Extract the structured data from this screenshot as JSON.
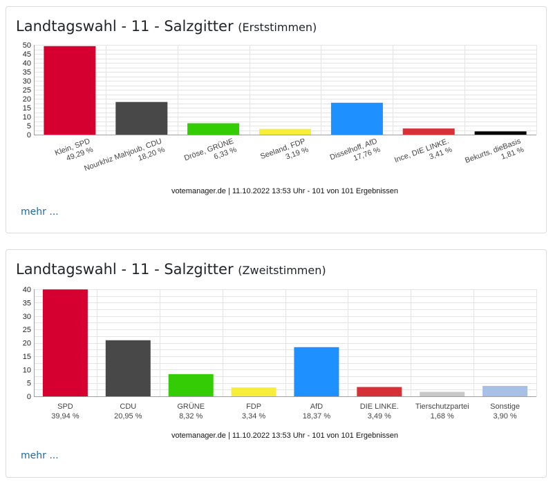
{
  "cards": [
    {
      "title": "Landtagswahl - 11 - Salzgitter",
      "subtitle": "(Erststimmen)",
      "footer": "votemanager.de | 11.10.2022 13:53 Uhr - 101 von 101 Ergebnissen",
      "more_label": "mehr ...",
      "chart_data": {
        "type": "bar",
        "categories": [
          "Klein, SPD",
          "Nourkhiz Mahjoub, CDU",
          "Dröse, GRÜNE",
          "Seeland, FDP",
          "Disselhoff, AfD",
          "Ince, DIE LINKE.",
          "Bekurts, dieBasis"
        ],
        "values": [
          49.29,
          18.2,
          6.33,
          3.19,
          17.76,
          3.41,
          1.81
        ],
        "value_labels": [
          "49,29 %",
          "18,20 %",
          "6,33 %",
          "3,19 %",
          "17,76 %",
          "3,41 %",
          "1,81 %"
        ],
        "colors": [
          "#d50030",
          "#484848",
          "#34cc04",
          "#f7ee3a",
          "#1e90ff",
          "#d73138",
          "#000000"
        ],
        "yticks": [
          0,
          5,
          10,
          15,
          20,
          25,
          30,
          35,
          40,
          45,
          50
        ],
        "ylim": [
          0,
          50
        ],
        "grid": true,
        "x_label_rotation": "rotated"
      }
    },
    {
      "title": "Landtagswahl - 11 - Salzgitter",
      "subtitle": "(Zweitstimmen)",
      "footer": "votemanager.de | 11.10.2022 13:53 Uhr - 101 von 101 Ergebnissen",
      "more_label": "mehr ...",
      "chart_data": {
        "type": "bar",
        "categories": [
          "SPD",
          "CDU",
          "GRÜNE",
          "FDP",
          "AfD",
          "DIE LINKE.",
          "Tierschutzpartei",
          "Sonstige"
        ],
        "values": [
          39.94,
          20.95,
          8.32,
          3.34,
          18.37,
          3.49,
          1.68,
          3.9
        ],
        "value_labels": [
          "39,94 %",
          "20,95 %",
          "8,32 %",
          "3,34 %",
          "18,37 %",
          "3,49 %",
          "1,68 %",
          "3,90 %"
        ],
        "colors": [
          "#d50030",
          "#484848",
          "#34cc04",
          "#f7ee3a",
          "#1e90ff",
          "#d73138",
          "#c8c8c8",
          "#a8c0e6"
        ],
        "yticks": [
          0,
          5,
          10,
          15,
          20,
          25,
          30,
          35,
          40
        ],
        "ylim": [
          0,
          40
        ],
        "grid": true,
        "x_label_rotation": "horizontal"
      }
    }
  ]
}
